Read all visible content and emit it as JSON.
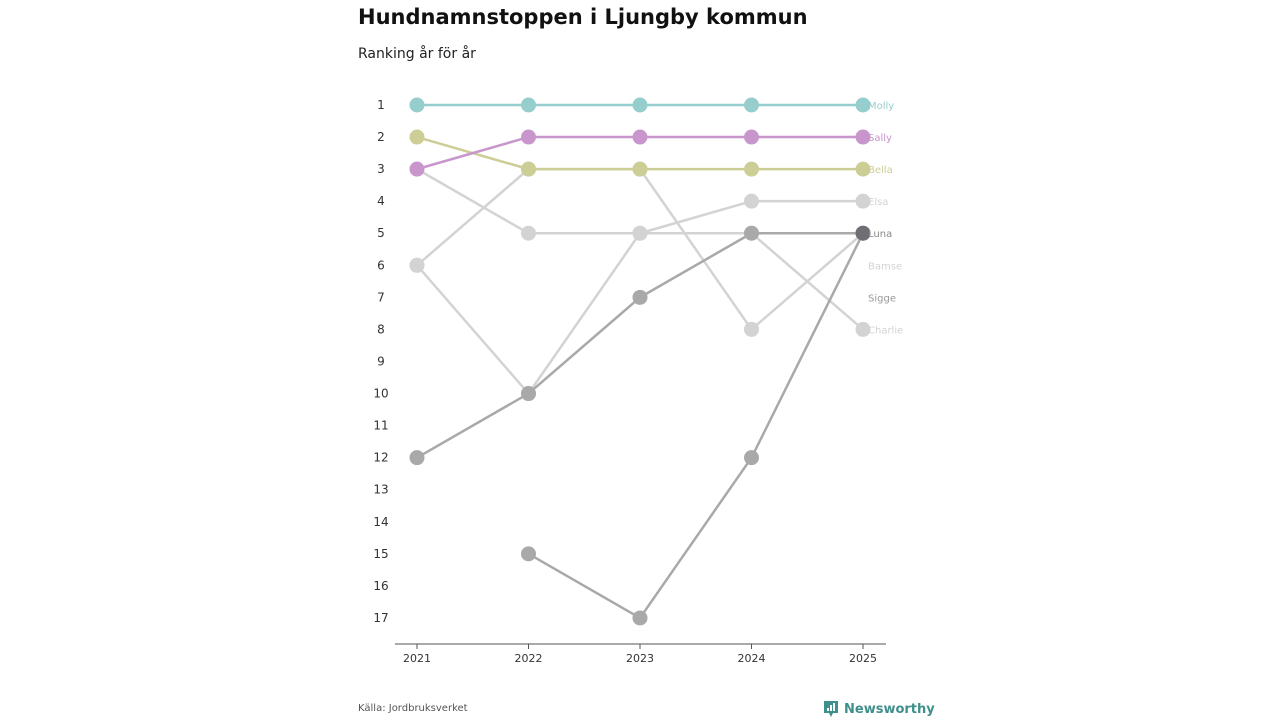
{
  "title": "Hundnamnstoppen i Ljungby kommun",
  "subtitle": "Ranking år för år",
  "source": "Källa: Jordbruksverket",
  "brand": {
    "name": "Newsworthy",
    "icon": "newsworthy-chart-icon",
    "color": "#3f8f8a"
  },
  "chart_data": {
    "type": "line",
    "x": [
      "2021",
      "2022",
      "2023",
      "2024",
      "2025"
    ],
    "y_ticks": [
      "1",
      "2",
      "3",
      "4",
      "5",
      "6",
      "7",
      "8",
      "9",
      "10",
      "11",
      "12",
      "13",
      "14",
      "15",
      "16",
      "17"
    ],
    "ylim": [
      1,
      17
    ],
    "y_inverted": true,
    "grid": false,
    "series": [
      {
        "name": "Molly",
        "values": [
          1,
          1,
          1,
          1,
          1
        ],
        "color": "#96cdcd"
      },
      {
        "name": "Sally",
        "values": [
          3,
          2,
          2,
          2,
          2
        ],
        "color": "#c896cd"
      },
      {
        "name": "Bella",
        "values": [
          2,
          3,
          3,
          3,
          3
        ],
        "color": "#cdcd96"
      },
      {
        "name": "Elsa",
        "values": [
          3,
          5,
          5,
          4,
          4
        ],
        "color": "#d3d3d3"
      },
      {
        "name": "Luna",
        "values": [
          12,
          10,
          7,
          5,
          5
        ],
        "color": "#a9a9a9"
      },
      {
        "name": "Bamse",
        "values": [
          6,
          3,
          3,
          8,
          5
        ],
        "color": "#d3d3d3"
      },
      {
        "name": "Sigge",
        "values": [
          null,
          15,
          17,
          12,
          5
        ],
        "color": "#a9a9a9"
      },
      {
        "name": "Charlie",
        "values": [
          6,
          10,
          5,
          5,
          8
        ],
        "color": "#d3d3d3"
      }
    ],
    "label_colors": [
      "#96cdcd",
      "#c896cd",
      "#cdcd96",
      "#d3d3d3",
      "#888888",
      "#d3d3d3",
      "#999999",
      "#d3d3d3"
    ]
  }
}
